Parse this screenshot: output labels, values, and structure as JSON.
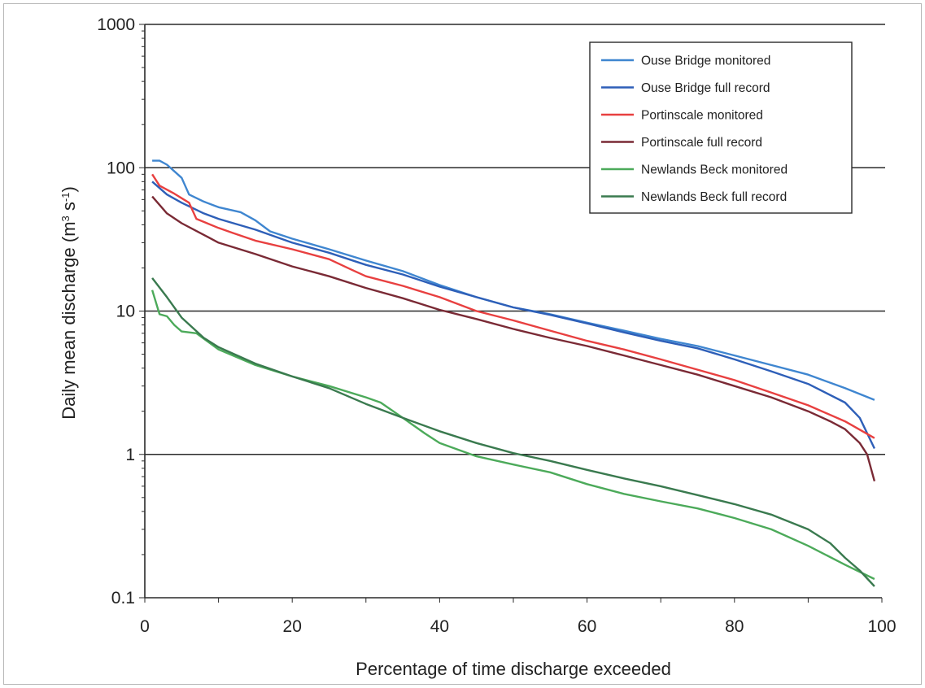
{
  "chart_data": {
    "type": "line",
    "title": "",
    "xlabel": "Percentage of time discharge exceeded",
    "ylabel": {
      "main": "Daily mean discharge (m",
      "sup1": "3",
      "mid": " s",
      "sup2": "-1",
      "end": ")"
    },
    "xlim": [
      0,
      100
    ],
    "ylim": [
      0.1,
      1000
    ],
    "yscale": "log",
    "grid": "horizontal major lines",
    "legend_position": "top-right",
    "x_ticks": [
      "0",
      "20",
      "40",
      "60",
      "80",
      "100"
    ],
    "y_ticks": [
      "0.1",
      "1",
      "10",
      "100",
      "1000"
    ],
    "series": [
      {
        "name": "Ouse Bridge monitored",
        "color": "#3f86d0",
        "points": [
          [
            1,
            112
          ],
          [
            2,
            112
          ],
          [
            3,
            105
          ],
          [
            5,
            85
          ],
          [
            6,
            65
          ],
          [
            8,
            58
          ],
          [
            10,
            53
          ],
          [
            13,
            49
          ],
          [
            15,
            43
          ],
          [
            17,
            36
          ],
          [
            20,
            32
          ],
          [
            25,
            27
          ],
          [
            30,
            22.5
          ],
          [
            35,
            19
          ],
          [
            40,
            15.2
          ],
          [
            45,
            12.5
          ],
          [
            50,
            10.6
          ],
          [
            55,
            9.5
          ],
          [
            60,
            8.3
          ],
          [
            65,
            7.3
          ],
          [
            70,
            6.4
          ],
          [
            75,
            5.7
          ],
          [
            80,
            4.9
          ],
          [
            85,
            4.2
          ],
          [
            90,
            3.6
          ],
          [
            95,
            2.9
          ],
          [
            99,
            2.4
          ]
        ]
      },
      {
        "name": "Ouse Bridge full record",
        "color": "#2e5fb8",
        "points": [
          [
            1,
            80
          ],
          [
            3,
            65
          ],
          [
            5,
            57
          ],
          [
            8,
            48
          ],
          [
            10,
            44
          ],
          [
            15,
            37
          ],
          [
            20,
            30
          ],
          [
            25,
            25.5
          ],
          [
            30,
            21
          ],
          [
            35,
            18
          ],
          [
            40,
            14.8
          ],
          [
            45,
            12.5
          ],
          [
            50,
            10.6
          ],
          [
            55,
            9.4
          ],
          [
            60,
            8.2
          ],
          [
            65,
            7.1
          ],
          [
            70,
            6.2
          ],
          [
            75,
            5.5
          ],
          [
            80,
            4.6
          ],
          [
            85,
            3.8
          ],
          [
            90,
            3.1
          ],
          [
            95,
            2.3
          ],
          [
            97,
            1.8
          ],
          [
            99,
            1.1
          ]
        ]
      },
      {
        "name": "Portinscale monitored",
        "color": "#e84040",
        "points": [
          [
            1,
            90
          ],
          [
            2,
            75
          ],
          [
            4,
            66
          ],
          [
            6,
            57
          ],
          [
            7,
            44
          ],
          [
            10,
            38
          ],
          [
            12,
            35
          ],
          [
            15,
            31
          ],
          [
            20,
            27
          ],
          [
            25,
            23
          ],
          [
            28,
            19.5
          ],
          [
            30,
            17.5
          ],
          [
            35,
            15
          ],
          [
            40,
            12.5
          ],
          [
            45,
            10
          ],
          [
            50,
            8.6
          ],
          [
            55,
            7.3
          ],
          [
            60,
            6.2
          ],
          [
            65,
            5.4
          ],
          [
            70,
            4.6
          ],
          [
            75,
            3.9
          ],
          [
            80,
            3.3
          ],
          [
            85,
            2.7
          ],
          [
            90,
            2.2
          ],
          [
            95,
            1.7
          ],
          [
            99,
            1.3
          ]
        ]
      },
      {
        "name": "Portinscale full record",
        "color": "#7a2a35",
        "points": [
          [
            1,
            63
          ],
          [
            3,
            48
          ],
          [
            5,
            41
          ],
          [
            8,
            34
          ],
          [
            10,
            30
          ],
          [
            15,
            25
          ],
          [
            20,
            20.5
          ],
          [
            25,
            17.5
          ],
          [
            30,
            14.5
          ],
          [
            35,
            12.3
          ],
          [
            40,
            10.2
          ],
          [
            45,
            8.8
          ],
          [
            50,
            7.5
          ],
          [
            55,
            6.5
          ],
          [
            60,
            5.7
          ],
          [
            65,
            4.9
          ],
          [
            70,
            4.2
          ],
          [
            75,
            3.6
          ],
          [
            80,
            3
          ],
          [
            85,
            2.5
          ],
          [
            90,
            2
          ],
          [
            93,
            1.7
          ],
          [
            95,
            1.5
          ],
          [
            97,
            1.2
          ],
          [
            98,
            1
          ],
          [
            99,
            0.65
          ]
        ]
      },
      {
        "name": "Newlands Beck monitored",
        "color": "#4caa5a",
        "points": [
          [
            1,
            14
          ],
          [
            2,
            9.5
          ],
          [
            3,
            9.2
          ],
          [
            4,
            8
          ],
          [
            5,
            7.2
          ],
          [
            7,
            7
          ],
          [
            10,
            5.4
          ],
          [
            15,
            4.2
          ],
          [
            20,
            3.5
          ],
          [
            25,
            3
          ],
          [
            30,
            2.5
          ],
          [
            32,
            2.3
          ],
          [
            35,
            1.8
          ],
          [
            38,
            1.4
          ],
          [
            40,
            1.2
          ],
          [
            45,
            0.97
          ],
          [
            50,
            0.85
          ],
          [
            55,
            0.75
          ],
          [
            60,
            0.62
          ],
          [
            65,
            0.53
          ],
          [
            70,
            0.47
          ],
          [
            75,
            0.42
          ],
          [
            80,
            0.36
          ],
          [
            85,
            0.3
          ],
          [
            90,
            0.23
          ],
          [
            95,
            0.17
          ],
          [
            99,
            0.135
          ]
        ]
      },
      {
        "name": "Newlands Beck full record",
        "color": "#3a7a4f",
        "points": [
          [
            1,
            17
          ],
          [
            3,
            12.5
          ],
          [
            5,
            9
          ],
          [
            8,
            6.5
          ],
          [
            10,
            5.6
          ],
          [
            15,
            4.3
          ],
          [
            20,
            3.5
          ],
          [
            25,
            2.9
          ],
          [
            30,
            2.25
          ],
          [
            35,
            1.8
          ],
          [
            40,
            1.45
          ],
          [
            45,
            1.2
          ],
          [
            50,
            1.02
          ],
          [
            55,
            0.9
          ],
          [
            60,
            0.78
          ],
          [
            65,
            0.68
          ],
          [
            70,
            0.6
          ],
          [
            75,
            0.52
          ],
          [
            80,
            0.45
          ],
          [
            85,
            0.38
          ],
          [
            90,
            0.3
          ],
          [
            93,
            0.24
          ],
          [
            95,
            0.19
          ],
          [
            97,
            0.155
          ],
          [
            99,
            0.12
          ]
        ]
      }
    ]
  }
}
